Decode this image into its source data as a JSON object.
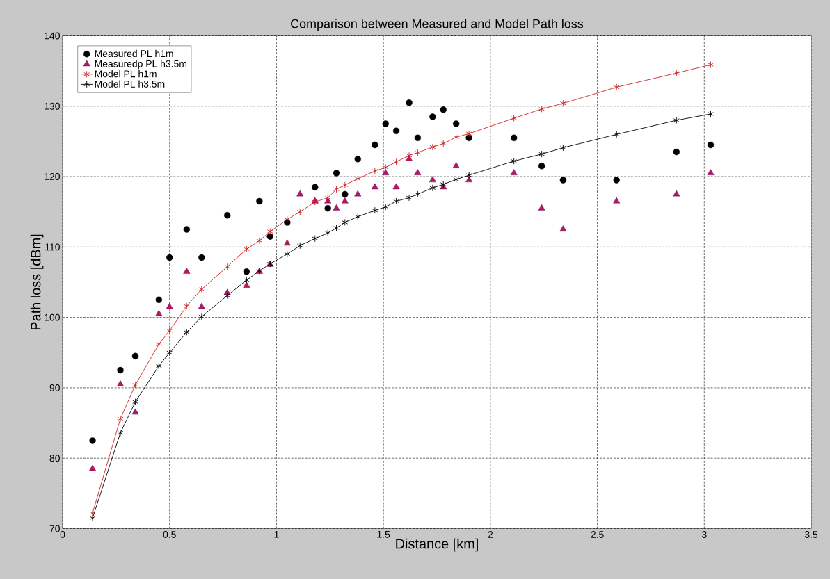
{
  "chart_data": {
    "type": "scatter",
    "title": "Comparison between Measured and Model Path loss",
    "xlabel": "Distance  [km]",
    "ylabel": "Path loss [dBm]",
    "x": [
      0.14,
      0.27,
      0.34,
      0.45,
      0.5,
      0.58,
      0.65,
      0.77,
      0.86,
      0.92,
      0.97,
      1.05,
      1.11,
      1.18,
      1.24,
      1.28,
      1.32,
      1.38,
      1.46,
      1.51,
      1.56,
      1.62,
      1.66,
      1.73,
      1.78,
      1.84,
      1.9,
      2.11,
      2.24,
      2.34,
      2.59,
      2.87,
      3.03
    ],
    "series": [
      {
        "name": "Measured PL h1m",
        "marker": "circle",
        "color": "#000000",
        "values": [
          82.5,
          92.5,
          94.5,
          102.5,
          108.5,
          112.5,
          108.5,
          114.5,
          106.5,
          116.5,
          111.5,
          113.5,
          null,
          118.5,
          115.5,
          120.5,
          117.5,
          122.5,
          124.5,
          127.5,
          126.5,
          130.5,
          125.5,
          128.5,
          129.5,
          127.5,
          125.5,
          125.5,
          121.5,
          119.5,
          119.5,
          123.5,
          124.5
        ]
      },
      {
        "name": "Measuredp PL h3.5m",
        "marker": "triangle",
        "color": "#c0145a",
        "values": [
          78.5,
          90.5,
          86.5,
          100.5,
          101.5,
          106.5,
          101.5,
          103.5,
          104.5,
          106.5,
          107.5,
          110.5,
          117.5,
          116.5,
          116.5,
          115.5,
          116.5,
          117.5,
          118.5,
          120.5,
          118.5,
          122.5,
          120.5,
          119.5,
          118.5,
          121.5,
          119.5,
          120.5,
          115.5,
          112.5,
          116.5,
          117.5,
          120.5
        ]
      },
      {
        "name": "Model PL h1m",
        "type": "line",
        "marker": "cross",
        "color": "#d02020",
        "values": [
          72.2,
          85.6,
          90.4,
          96.2,
          98.1,
          101.6,
          104.0,
          107.2,
          109.7,
          110.9,
          112.2,
          113.9,
          115.0,
          116.4,
          117.0,
          118.2,
          118.8,
          119.7,
          120.8,
          121.3,
          122.1,
          123.0,
          123.4,
          124.2,
          124.7,
          125.6,
          126.1,
          128.3,
          129.6,
          130.4,
          132.7,
          134.7,
          135.9
        ]
      },
      {
        "name": "Model PL h3.5m",
        "type": "line",
        "marker": "cross",
        "color": "#000000",
        "values": [
          71.5,
          83.6,
          88.0,
          93.1,
          95.0,
          97.9,
          100.1,
          103.1,
          105.3,
          106.6,
          107.6,
          109.0,
          110.2,
          111.2,
          112.0,
          112.7,
          113.5,
          114.3,
          115.2,
          115.7,
          116.5,
          117.0,
          117.5,
          118.4,
          118.9,
          119.6,
          120.2,
          122.2,
          123.2,
          124.1,
          126.0,
          128.0,
          128.9
        ]
      }
    ],
    "xlim": [
      0,
      3.5
    ],
    "ylim": [
      70,
      140
    ],
    "xticks": [
      0,
      0.5,
      1,
      1.5,
      2,
      2.5,
      3,
      3.5
    ],
    "yticks": [
      70,
      80,
      90,
      100,
      110,
      120,
      130,
      140
    ],
    "grid": true,
    "legend": "top left",
    "line_style": "solid"
  }
}
